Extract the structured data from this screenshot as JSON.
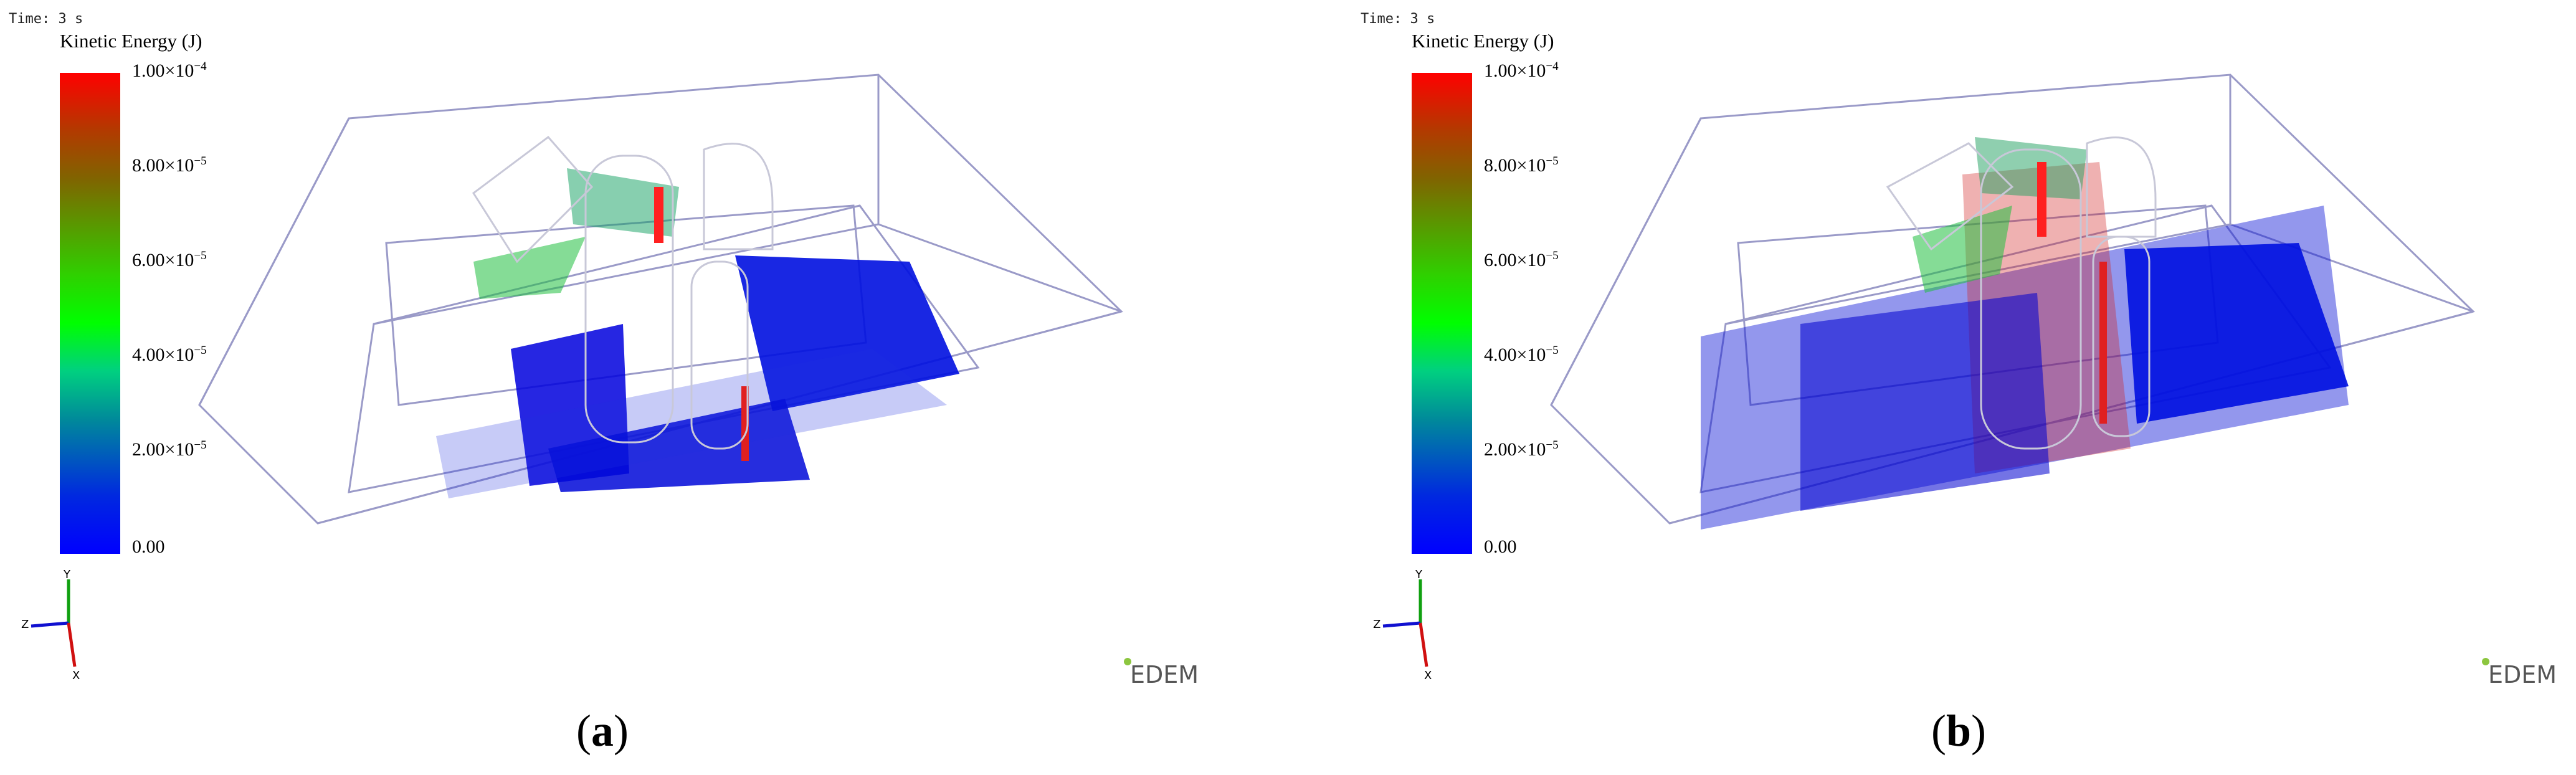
{
  "panels": [
    {
      "time": "Time: 3 s",
      "legend_title": "Kinetic Energy (J)",
      "ticks": [
        {
          "base": "1.00×10",
          "exp": "−4"
        },
        {
          "base": "8.00×10",
          "exp": "−5"
        },
        {
          "base": "6.00×10",
          "exp": "−5"
        },
        {
          "base": "4.00×10",
          "exp": "−5"
        },
        {
          "base": "2.00×10",
          "exp": "−5"
        },
        {
          "base": "0.00",
          "exp": ""
        }
      ],
      "axes": {
        "y": "Y",
        "z": "Z",
        "x": "X"
      },
      "logo": "EDEM",
      "label_open": "(",
      "label_letter": "a",
      "label_close": ")"
    },
    {
      "time": "Time: 3 s",
      "legend_title": "Kinetic Energy (J)",
      "ticks": [
        {
          "base": "1.00×10",
          "exp": "−4"
        },
        {
          "base": "8.00×10",
          "exp": "−5"
        },
        {
          "base": "6.00×10",
          "exp": "−5"
        },
        {
          "base": "4.00×10",
          "exp": "−5"
        },
        {
          "base": "2.00×10",
          "exp": "−5"
        },
        {
          "base": "0.00",
          "exp": ""
        }
      ],
      "axes": {
        "y": "Y",
        "z": "Z",
        "x": "X"
      },
      "logo": "EDEM",
      "label_open": "(",
      "label_letter": "b",
      "label_close": ")"
    }
  ],
  "colors": {
    "max": "#ff0000",
    "mid": "#00ff00",
    "min": "#0000ff",
    "frame": "#9a9ac8"
  }
}
